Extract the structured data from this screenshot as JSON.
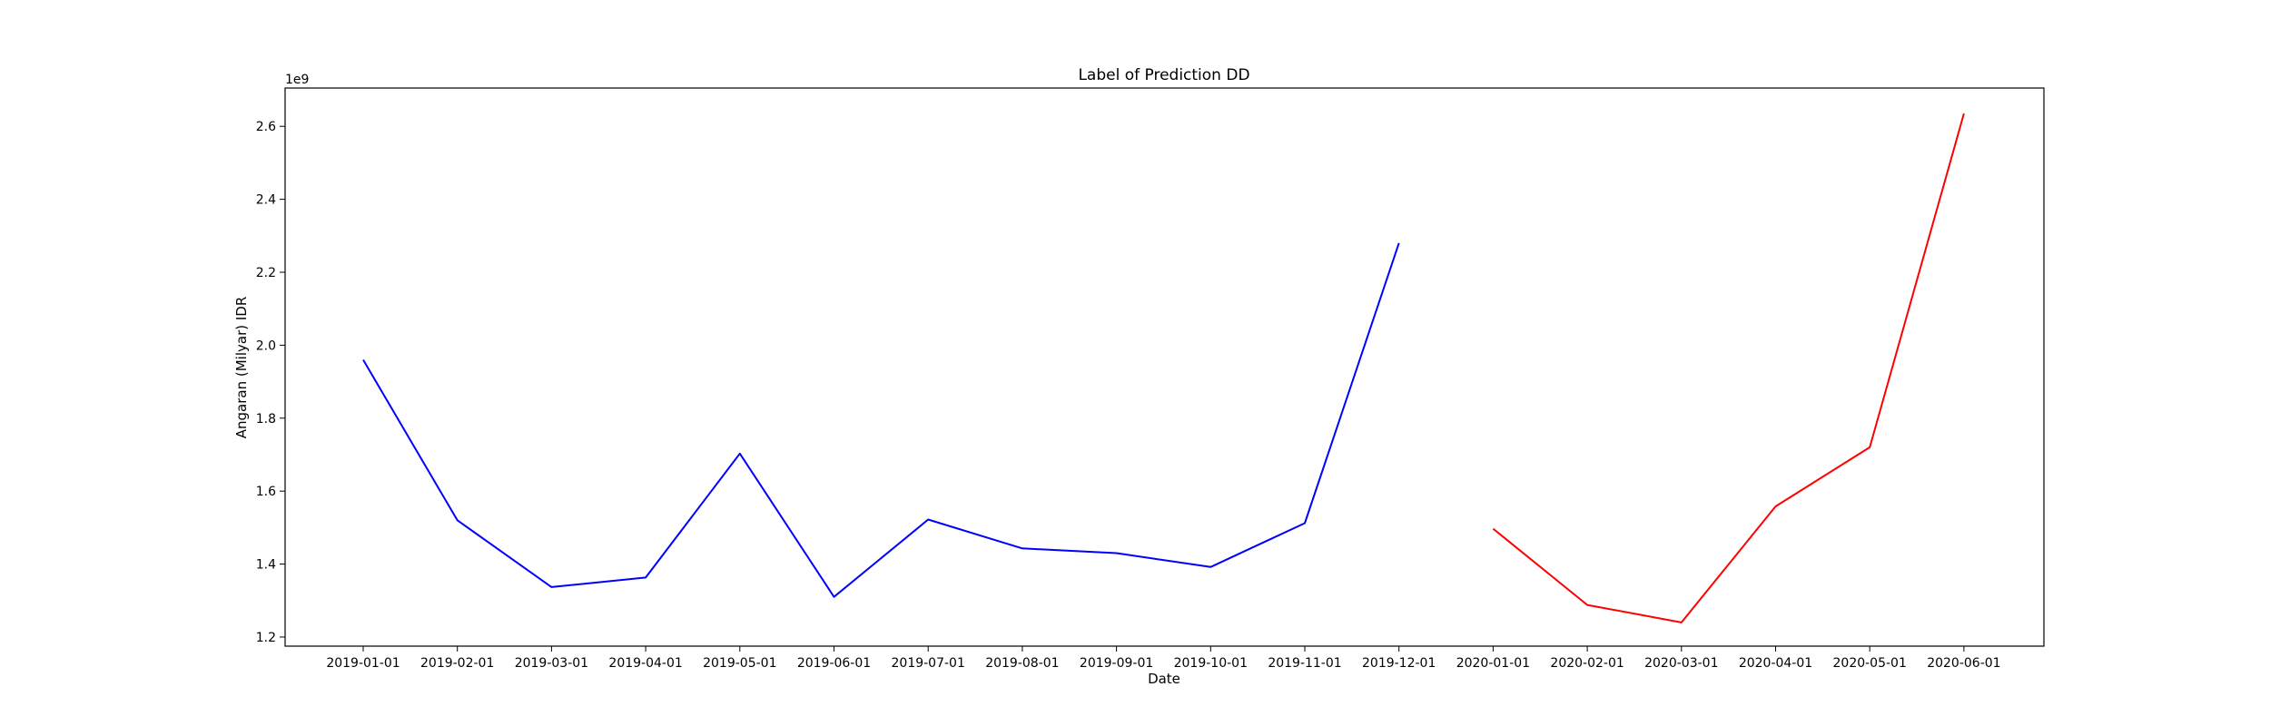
{
  "chart_data": {
    "type": "line",
    "title": "Label of Prediction DD",
    "xlabel": "Date",
    "ylabel": "Angaran (Milyar) IDR",
    "y_offset_label": "1e9",
    "grid": false,
    "categories": [
      "2019-01-01",
      "2019-02-01",
      "2019-03-01",
      "2019-04-01",
      "2019-05-01",
      "2019-06-01",
      "2019-07-01",
      "2019-08-01",
      "2019-09-01",
      "2019-10-01",
      "2019-11-01",
      "2019-12-01",
      "2020-01-01",
      "2020-02-01",
      "2020-03-01",
      "2020-04-01",
      "2020-05-01",
      "2020-06-01"
    ],
    "yticks": [
      1.2,
      1.4,
      1.6,
      1.8,
      2.0,
      2.2,
      2.4,
      2.6
    ],
    "ylim": [
      1.175,
      2.705
    ],
    "series": [
      {
        "color": "#0000ff",
        "x": [
          "2019-01-01",
          "2019-02-01",
          "2019-03-01",
          "2019-04-01",
          "2019-05-01",
          "2019-06-01",
          "2019-07-01",
          "2019-08-01",
          "2019-09-01",
          "2019-10-01",
          "2019-11-01",
          "2019-12-01"
        ],
        "values": [
          1.96,
          1.52,
          1.337,
          1.363,
          1.703,
          1.31,
          1.522,
          1.443,
          1.43,
          1.392,
          1.512,
          2.28
        ]
      },
      {
        "color": "#ff0000",
        "x": [
          "2020-01-01",
          "2020-02-01",
          "2020-03-01",
          "2020-04-01",
          "2020-05-01",
          "2020-06-01"
        ],
        "values": [
          1.497,
          1.288,
          1.24,
          1.558,
          1.72,
          2.635
        ]
      }
    ]
  }
}
